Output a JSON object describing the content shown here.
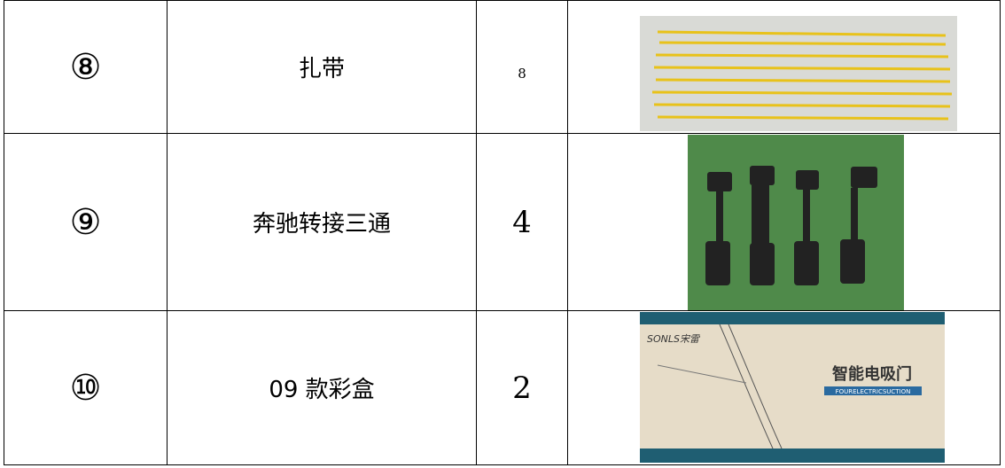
{
  "table": {
    "rows": [
      [
        "⑧",
        "扎带",
        "8"
      ],
      [
        "⑨",
        "奔驰转接三通",
        "4"
      ],
      [
        "⑩",
        "09 款彩盒",
        "2"
      ]
    ]
  },
  "box_photo": {
    "brand": "SONLS宋雷",
    "title": "智能电吸门",
    "subtitle": "FOURELECTRICSUCTION"
  }
}
